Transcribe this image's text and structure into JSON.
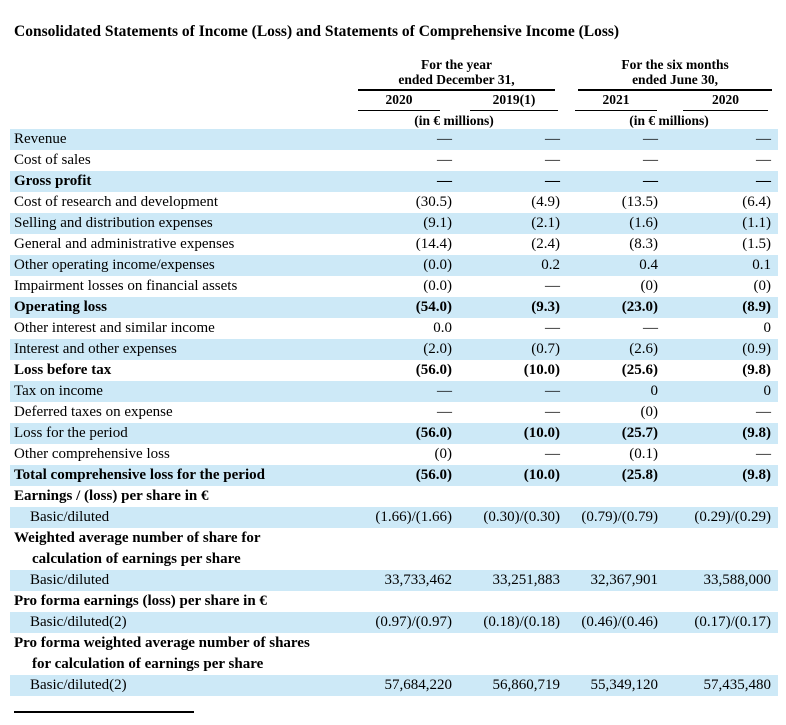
{
  "title": "Consolidated Statements of Income (Loss) and Statements of Comprehensive Income (Loss)",
  "colors": {
    "row_stripe": "#cde9f7",
    "text": "#000000",
    "background": "#ffffff"
  },
  "header": {
    "group1": {
      "line1": "For the year",
      "line2": "ended December 31,",
      "col1": "2020",
      "col2": "2019(1)",
      "units": "(in € millions)"
    },
    "group2": {
      "line1": "For the six months",
      "line2": "ended June 30,",
      "col1": "2021",
      "col2": "2020",
      "units": "(in € millions)"
    }
  },
  "rows": [
    {
      "label": "Revenue",
      "values": [
        "—",
        "—",
        "—",
        "—"
      ],
      "shaded": true
    },
    {
      "label": "Cost of sales",
      "values": [
        "—",
        "—",
        "—",
        "—"
      ]
    },
    {
      "label": "Gross profit",
      "values": [
        "—",
        "—",
        "—",
        "—"
      ],
      "shaded": true,
      "label_bold": true,
      "values_bold": true
    },
    {
      "label": "Cost of research and development",
      "values": [
        "(30.5)",
        "(4.9)",
        "(13.5)",
        "(6.4)"
      ]
    },
    {
      "label": "Selling and distribution expenses",
      "values": [
        "(9.1)",
        "(2.1)",
        "(1.6)",
        "(1.1)"
      ],
      "shaded": true
    },
    {
      "label": "General and administrative expenses",
      "values": [
        "(14.4)",
        "(2.4)",
        "(8.3)",
        "(1.5)"
      ]
    },
    {
      "label": "Other operating income/expenses",
      "values": [
        "(0.0)",
        "0.2",
        "0.4",
        "0.1"
      ],
      "shaded": true
    },
    {
      "label": "Impairment losses on financial assets",
      "values": [
        "(0.0)",
        "—",
        "(0)",
        "(0)"
      ]
    },
    {
      "label": "Operating loss",
      "values": [
        "(54.0)",
        "(9.3)",
        "(23.0)",
        "(8.9)"
      ],
      "shaded": true,
      "label_bold": true,
      "values_bold": true
    },
    {
      "label": "Other interest and similar income",
      "values": [
        "0.0",
        "—",
        "—",
        "0"
      ]
    },
    {
      "label": "Interest and other expenses",
      "values": [
        "(2.0)",
        "(0.7)",
        "(2.6)",
        "(0.9)"
      ],
      "shaded": true
    },
    {
      "label": "Loss before tax",
      "values": [
        "(56.0)",
        "(10.0)",
        "(25.6)",
        "(9.8)"
      ],
      "label_bold": true,
      "values_bold": true
    },
    {
      "label": "Tax on income",
      "values": [
        "—",
        "—",
        "0",
        "0"
      ],
      "shaded": true
    },
    {
      "label": "Deferred taxes on expense",
      "values": [
        "—",
        "—",
        "(0)",
        "—"
      ]
    },
    {
      "label": "Loss for the period",
      "values": [
        "(56.0)",
        "(10.0)",
        "(25.7)",
        "(9.8)"
      ],
      "shaded": true,
      "values_bold": true
    },
    {
      "label": "Other comprehensive loss",
      "values": [
        "(0)",
        "—",
        "(0.1)",
        "—"
      ]
    },
    {
      "label": "Total comprehensive loss for the period",
      "values": [
        "(56.0)",
        "(10.0)",
        "(25.8)",
        "(9.8)"
      ],
      "shaded": true,
      "label_bold": true,
      "values_bold": true
    },
    {
      "label": "Earnings / (loss) per share in €",
      "values": [
        "",
        "",
        "",
        ""
      ],
      "label_bold": true
    },
    {
      "label": "Basic/diluted",
      "values": [
        "(1.66)/(1.66)",
        "(0.30)/(0.30)",
        "(0.79)/(0.79)",
        "(0.29)/(0.29)"
      ],
      "shaded": true,
      "indent": true
    },
    {
      "label": "Weighted average number of share for",
      "label2": "calculation of earnings per share",
      "values": [
        "",
        "",
        "",
        ""
      ],
      "label_bold": true
    },
    {
      "label": "Basic/diluted",
      "values": [
        "33,733,462",
        "33,251,883",
        "32,367,901",
        "33,588,000"
      ],
      "shaded": true,
      "indent": true
    },
    {
      "label": "Pro forma earnings (loss) per share in €",
      "values": [
        "",
        "",
        "",
        ""
      ],
      "label_bold": true
    },
    {
      "label": "Basic/diluted(2)",
      "values": [
        "(0.97)/(0.97)",
        "(0.18)/(0.18)",
        "(0.46)/(0.46)",
        "(0.17)/(0.17)"
      ],
      "shaded": true,
      "indent": true
    },
    {
      "label": "Pro forma weighted average number of shares",
      "label2": "for calculation of earnings per share",
      "values": [
        "",
        "",
        "",
        ""
      ],
      "label_bold": true
    },
    {
      "label": "Basic/diluted(2)",
      "values": [
        "57,684,220",
        "56,860,719",
        "55,349,120",
        "57,435,480"
      ],
      "shaded": true,
      "indent": true
    }
  ]
}
